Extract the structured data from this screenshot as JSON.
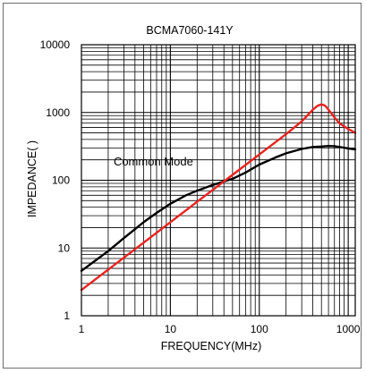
{
  "chart_data": {
    "type": "line",
    "title": "BCMA7060-141Y",
    "xlabel": "FREQUENCY(MHz)",
    "ylabel": "IMPEDANCE(  )",
    "xscale": "log",
    "yscale": "log",
    "xlim": [
      1,
      1200
    ],
    "ylim": [
      1,
      10000
    ],
    "grid": true,
    "x_ticks": [
      {
        "value": 1,
        "label": "1"
      },
      {
        "value": 10,
        "label": "10"
      },
      {
        "value": 100,
        "label": "100"
      },
      {
        "value": 1000,
        "label": "1000"
      }
    ],
    "y_ticks": [
      {
        "value": 1,
        "label": "1"
      },
      {
        "value": 10,
        "label": "10"
      },
      {
        "value": 100,
        "label": "100"
      },
      {
        "value": 1000,
        "label": "1000"
      },
      {
        "value": 10000,
        "label": "10000"
      }
    ],
    "annotations": [
      {
        "text": "Common Mode",
        "x": 2.3,
        "y": 165
      }
    ],
    "series": [
      {
        "color": "#000000",
        "x": [
          1,
          1.5,
          2,
          3,
          5,
          7,
          10,
          15,
          20,
          30,
          50,
          70,
          100,
          150,
          200,
          300,
          400,
          500,
          600,
          700,
          800,
          1000,
          1200
        ],
        "y": [
          4.6,
          6.8,
          9,
          14,
          24,
          33,
          45,
          60,
          70,
          85,
          105,
          130,
          170,
          215,
          250,
          290,
          310,
          315,
          320,
          318,
          310,
          295,
          285
        ]
      },
      {
        "color": "#e8231f",
        "x": [
          1,
          2,
          3,
          5,
          10,
          20,
          30,
          50,
          100,
          200,
          300,
          400,
          450,
          500,
          550,
          600,
          700,
          800,
          1000,
          1200
        ],
        "y": [
          2.4,
          4.8,
          7.2,
          12,
          24,
          48,
          72,
          120,
          240,
          480,
          740,
          1100,
          1250,
          1320,
          1260,
          1100,
          850,
          690,
          570,
          500
        ]
      }
    ]
  }
}
